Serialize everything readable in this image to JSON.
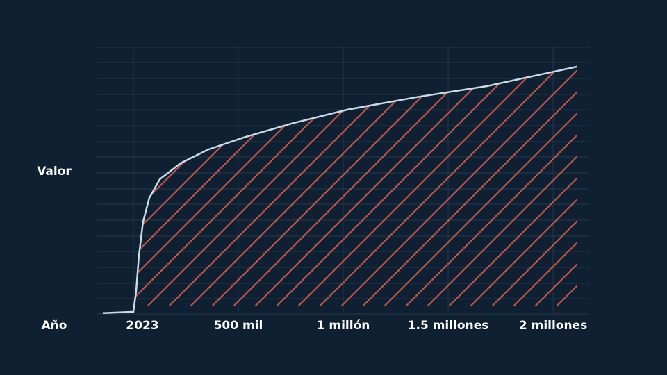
{
  "chart_data": {
    "type": "line",
    "x_label": "Año",
    "y_label": "Valor",
    "xlim": [
      -172000,
      2172000
    ],
    "ylim": [
      0,
      100
    ],
    "xticks": [
      {
        "value": 0,
        "label": "2023"
      },
      {
        "value": 500000,
        "label": "500 mil"
      },
      {
        "value": 1000000,
        "label": "1 millón"
      },
      {
        "value": 1500000,
        "label": "1.5 millones"
      },
      {
        "value": 2000000,
        "label": "2 millones"
      }
    ],
    "grid": true,
    "series": [
      {
        "color": "#c9dbe6",
        "fill_pattern_color": "#e2604a",
        "x": [
          -146000,
          0,
          13000,
          26000,
          46000,
          76000,
          126000,
          225000,
          358000,
          523000,
          755000,
          1020000,
          1351000,
          1682000,
          2113000
        ],
        "values": [
          0.3,
          0.8,
          8.3,
          21.4,
          34.4,
          43.5,
          50.5,
          56.5,
          61.7,
          66.1,
          71.4,
          76.6,
          81.3,
          85.4,
          92.7
        ]
      }
    ]
  }
}
